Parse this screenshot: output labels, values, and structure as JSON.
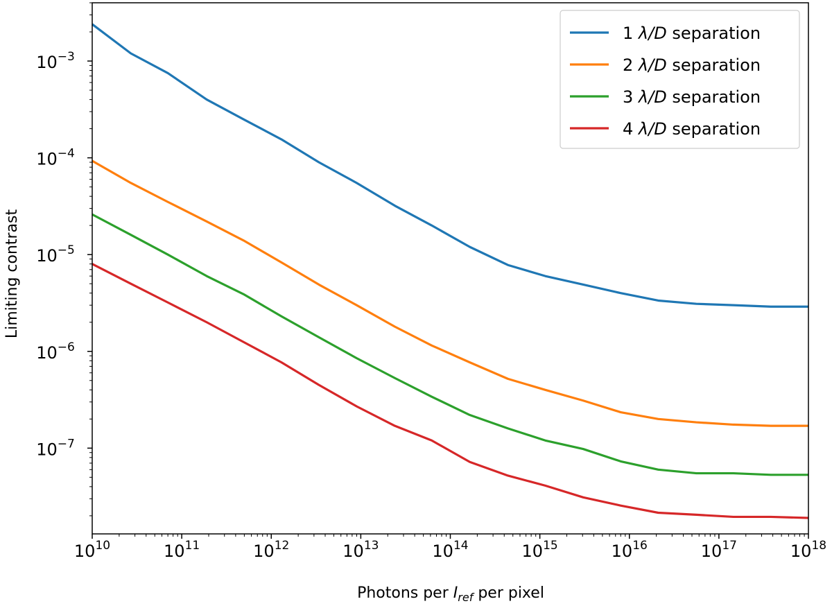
{
  "chart_data": {
    "type": "line",
    "title": "",
    "xlabel": {
      "prefix": "Photons per ",
      "symbol": "I",
      "subscript": "ref",
      "suffix": " per pixel"
    },
    "ylabel": "Limiting contrast",
    "xscale": "log",
    "yscale": "log",
    "xlim": [
      10000000000.0,
      1e+18
    ],
    "ylim": [
      1.3e-08,
      0.004
    ],
    "grid": false,
    "legend_position": "top-right",
    "x_ticks": [
      {
        "base": "10",
        "exp": "10"
      },
      {
        "base": "10",
        "exp": "11"
      },
      {
        "base": "10",
        "exp": "12"
      },
      {
        "base": "10",
        "exp": "13"
      },
      {
        "base": "10",
        "exp": "14"
      },
      {
        "base": "10",
        "exp": "15"
      },
      {
        "base": "10",
        "exp": "16"
      },
      {
        "base": "10",
        "exp": "17"
      },
      {
        "base": "10",
        "exp": "18"
      }
    ],
    "y_ticks": [
      {
        "base": "10",
        "exp": "−3"
      },
      {
        "base": "10",
        "exp": "−4"
      },
      {
        "base": "10",
        "exp": "−5"
      },
      {
        "base": "10",
        "exp": "−6"
      },
      {
        "base": "10",
        "exp": "−7"
      }
    ],
    "x": [
      10000000000.0,
      27000000000.0,
      70000000000.0,
      190000000000.0,
      490000000000.0,
      1300000000000.0,
      3400000000000.0,
      9000000000000.0,
      24000000000000.0,
      62000000000000.0,
      165000000000000.0,
      440000000000000.0,
      1150000000000000.0,
      3050000000000000.0,
      8000000000000000.0,
      2.1e+16,
      5.6e+16,
      1.45e+17,
      3.8e+17,
      1e+18
    ],
    "series": [
      {
        "name": "1 λ/D separation",
        "color": "#1f77b4",
        "values": [
          0.0024,
          0.0012,
          0.00075,
          0.0004,
          0.00025,
          0.000155,
          9e-05,
          5.5e-05,
          3.2e-05,
          2e-05,
          1.2e-05,
          7.8e-06,
          6e-06,
          4.9e-06,
          4e-06,
          3.35e-06,
          3.1e-06,
          3e-06,
          2.9e-06,
          2.9e-06
        ]
      },
      {
        "name": "2 λ/D separation",
        "color": "#ff7f0e",
        "values": [
          9.3e-05,
          5.5e-05,
          3.5e-05,
          2.2e-05,
          1.4e-05,
          8.3e-06,
          4.9e-06,
          3e-06,
          1.8e-06,
          1.15e-06,
          7.7e-07,
          5.2e-07,
          4e-07,
          3.1e-07,
          2.35e-07,
          2e-07,
          1.85e-07,
          1.75e-07,
          1.7e-07,
          1.7e-07
        ]
      },
      {
        "name": "3 λ/D separation",
        "color": "#2ca02c",
        "values": [
          2.6e-05,
          1.6e-05,
          1e-05,
          6e-06,
          3.9e-06,
          2.3e-06,
          1.4e-06,
          8.5e-07,
          5.3e-07,
          3.4e-07,
          2.2e-07,
          1.6e-07,
          1.2e-07,
          9.8e-08,
          7.3e-08,
          6e-08,
          5.5e-08,
          5.5e-08,
          5.3e-08,
          5.3e-08
        ]
      },
      {
        "name": "4 λ/D separation",
        "color": "#d62728",
        "values": [
          8e-06,
          5e-06,
          3.2e-06,
          2e-06,
          1.25e-06,
          7.7e-07,
          4.5e-07,
          2.7e-07,
          1.7e-07,
          1.2e-07,
          7.2e-08,
          5.2e-08,
          4.1e-08,
          3.1e-08,
          2.55e-08,
          2.15e-08,
          2.05e-08,
          1.95e-08,
          1.95e-08,
          1.9e-08
        ]
      }
    ]
  }
}
